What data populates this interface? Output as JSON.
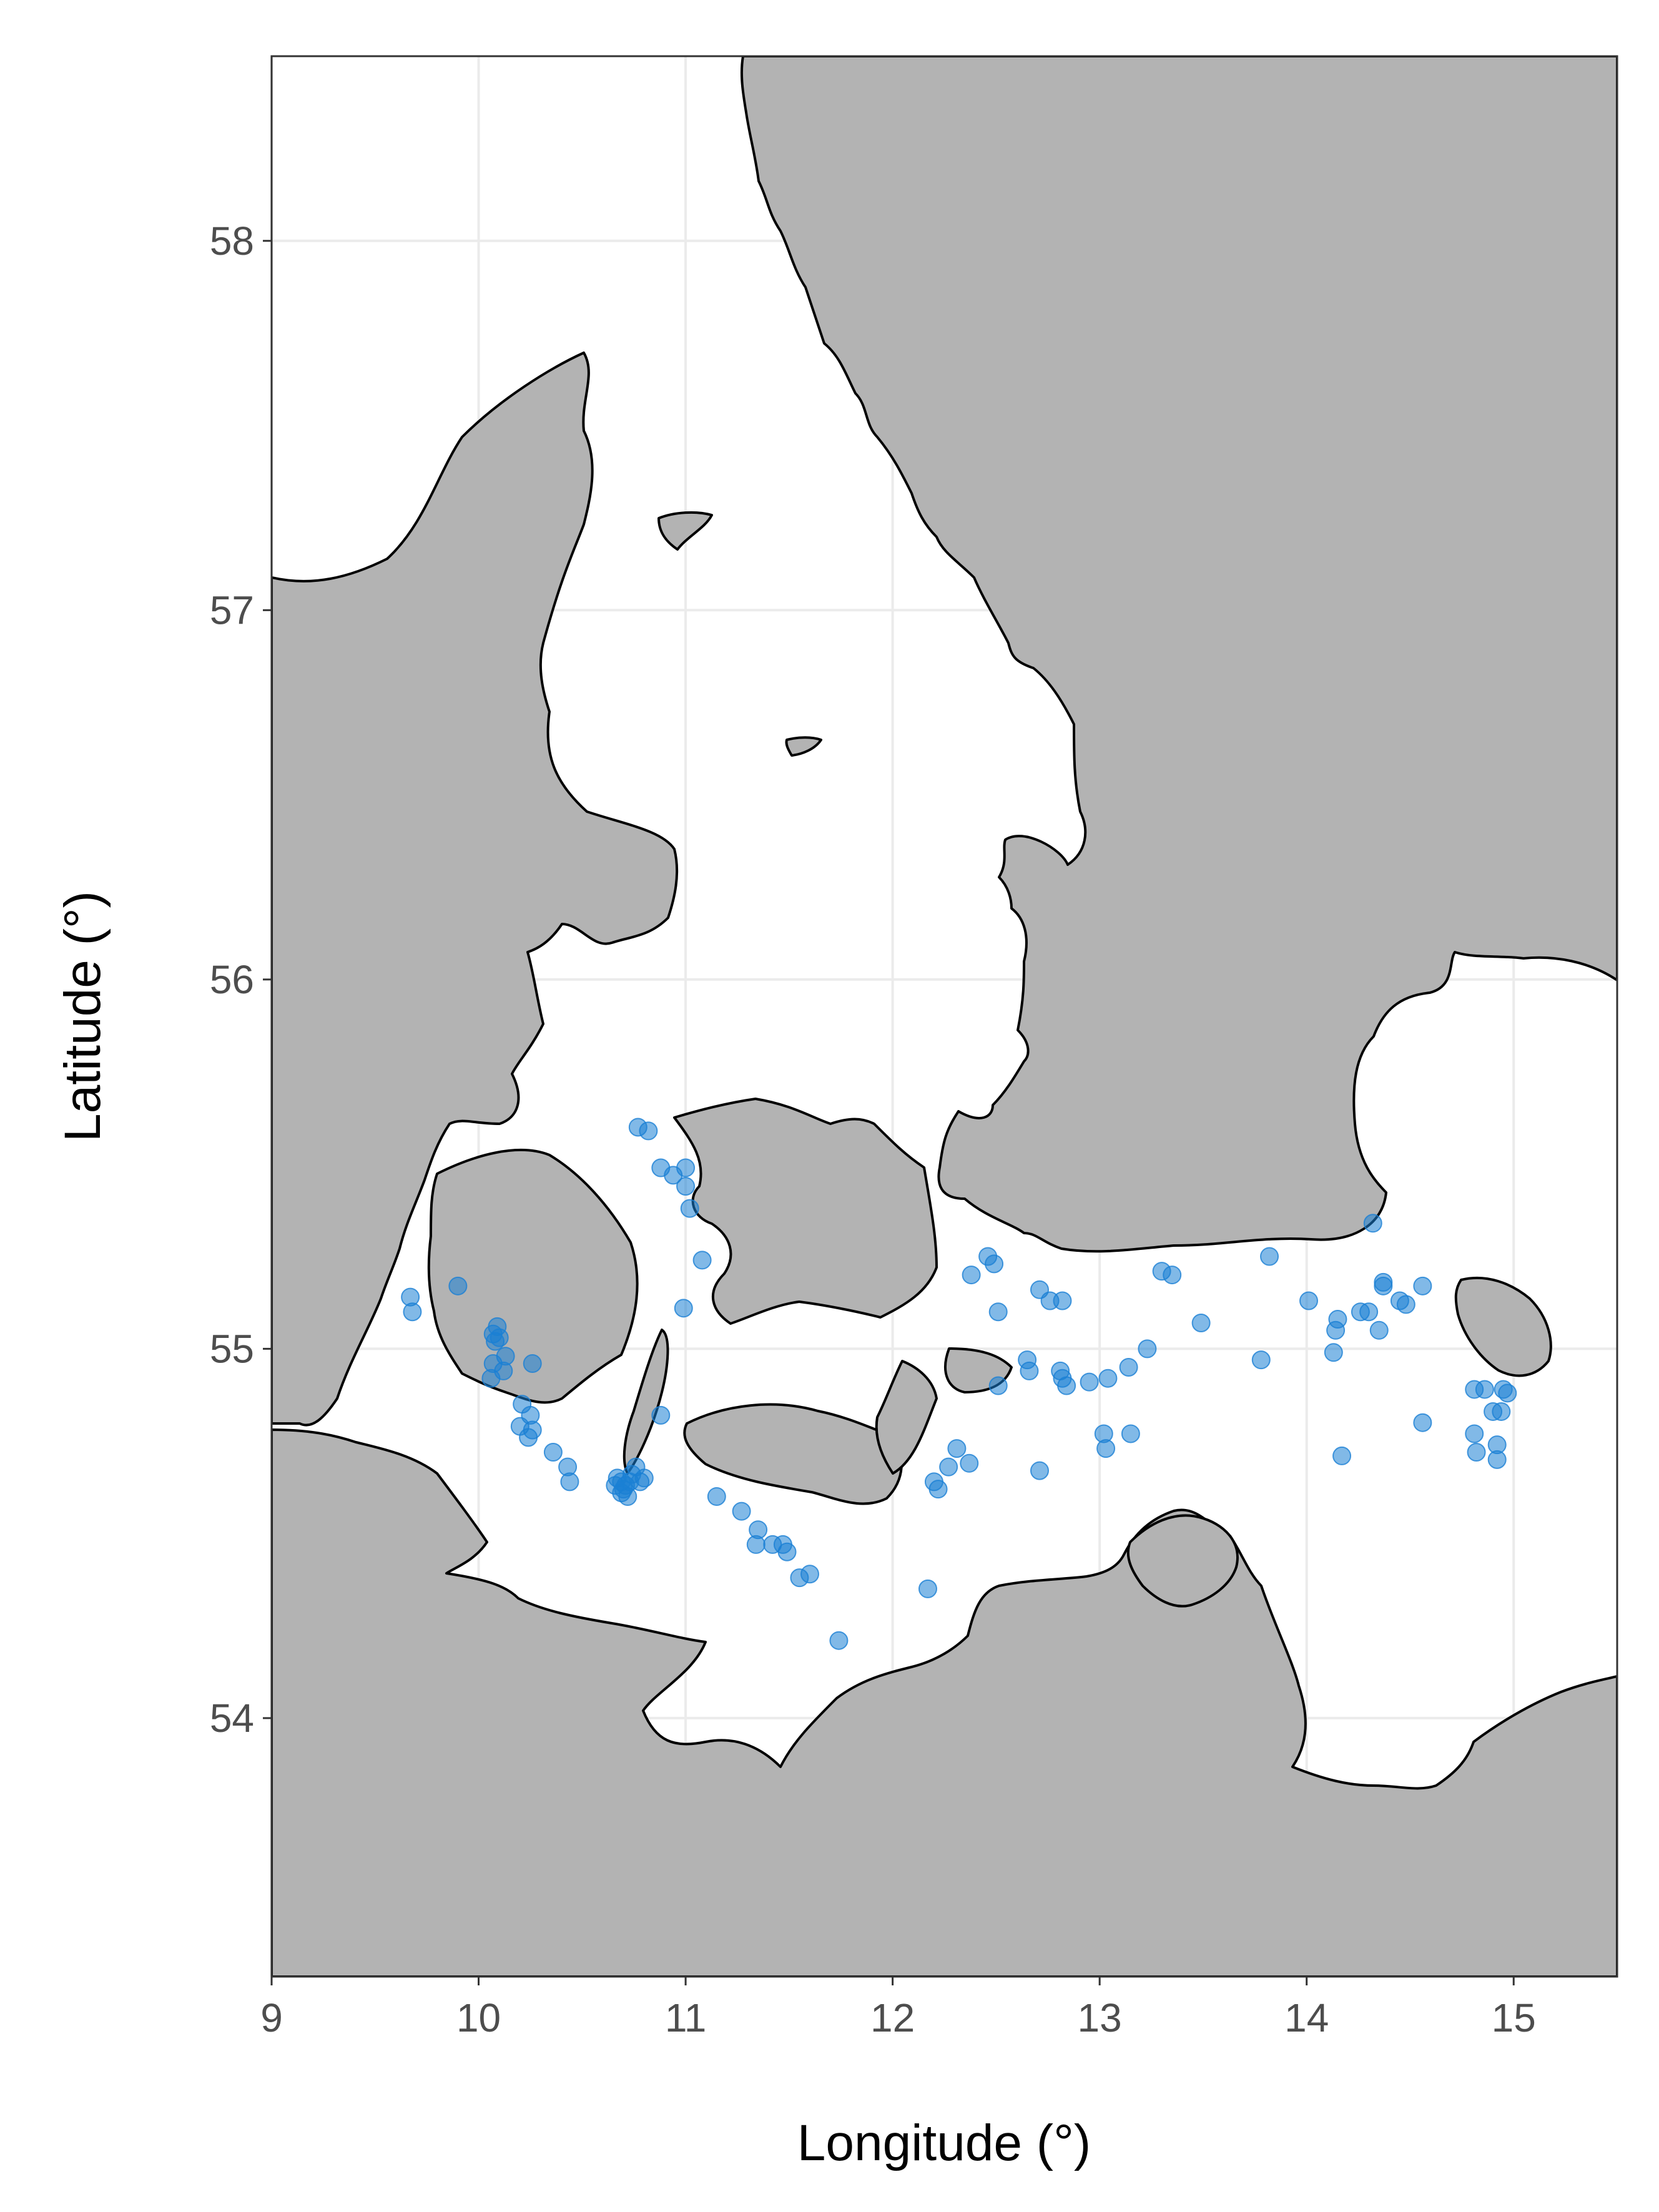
{
  "chart_data": {
    "type": "scatter",
    "xlabel": "Longitude (°)",
    "ylabel": "Latitude (°)",
    "xlim": [
      9,
      15.5
    ],
    "ylim": [
      53.3,
      58.5
    ],
    "x_ticks": [
      "9",
      "10",
      "11",
      "12",
      "13",
      "14",
      "15"
    ],
    "y_ticks": [
      "54",
      "55",
      "56",
      "57",
      "58"
    ],
    "grid": true,
    "land_color": "#b3b3b3",
    "sea_color": "#ffffff",
    "point_color": "#1a7fd4",
    "series": [
      {
        "points": [
          [
            10.82,
            55.59
          ],
          [
            10.77,
            55.6
          ],
          [
            10.88,
            55.49
          ],
          [
            10.94,
            55.47
          ],
          [
            11.0,
            55.49
          ],
          [
            11.0,
            55.44
          ],
          [
            11.02,
            55.38
          ],
          [
            11.08,
            55.24
          ],
          [
            10.99,
            55.11
          ],
          [
            9.67,
            55.14
          ],
          [
            9.68,
            55.1
          ],
          [
            9.9,
            55.17
          ],
          [
            10.07,
            55.04
          ],
          [
            10.09,
            55.06
          ],
          [
            10.08,
            55.02
          ],
          [
            10.1,
            55.03
          ],
          [
            10.13,
            54.98
          ],
          [
            10.12,
            54.94
          ],
          [
            10.07,
            54.96
          ],
          [
            10.06,
            54.92
          ],
          [
            10.21,
            54.85
          ],
          [
            10.25,
            54.82
          ],
          [
            10.2,
            54.79
          ],
          [
            10.26,
            54.78
          ],
          [
            10.24,
            54.76
          ],
          [
            10.26,
            54.96
          ],
          [
            10.36,
            54.72
          ],
          [
            10.43,
            54.68
          ],
          [
            10.44,
            54.64
          ],
          [
            10.88,
            54.82
          ],
          [
            10.67,
            54.65
          ],
          [
            10.69,
            54.64
          ],
          [
            10.71,
            54.63
          ],
          [
            10.69,
            54.61
          ],
          [
            10.72,
            54.6
          ],
          [
            10.74,
            54.66
          ],
          [
            10.76,
            54.68
          ],
          [
            10.78,
            54.64
          ],
          [
            10.8,
            54.65
          ],
          [
            10.66,
            54.63
          ],
          [
            10.7,
            54.62
          ],
          [
            10.73,
            54.64
          ],
          [
            11.15,
            54.6
          ],
          [
            11.27,
            54.56
          ],
          [
            11.35,
            54.51
          ],
          [
            11.34,
            54.47
          ],
          [
            11.42,
            54.47
          ],
          [
            11.47,
            54.47
          ],
          [
            11.49,
            54.45
          ],
          [
            11.55,
            54.38
          ],
          [
            11.6,
            54.39
          ],
          [
            11.74,
            54.21
          ],
          [
            12.17,
            54.35
          ],
          [
            12.2,
            54.64
          ],
          [
            12.22,
            54.62
          ],
          [
            12.27,
            54.68
          ],
          [
            12.31,
            54.73
          ],
          [
            12.37,
            54.69
          ],
          [
            12.38,
            55.2
          ],
          [
            12.46,
            55.25
          ],
          [
            12.49,
            55.23
          ],
          [
            12.51,
            55.1
          ],
          [
            12.51,
            54.9
          ],
          [
            12.65,
            54.97
          ],
          [
            12.66,
            54.94
          ],
          [
            12.71,
            55.16
          ],
          [
            12.76,
            55.13
          ],
          [
            12.82,
            55.13
          ],
          [
            12.81,
            54.94
          ],
          [
            12.82,
            54.92
          ],
          [
            12.84,
            54.9
          ],
          [
            12.71,
            54.67
          ],
          [
            12.95,
            54.91
          ],
          [
            13.02,
            54.77
          ],
          [
            13.03,
            54.73
          ],
          [
            13.04,
            54.92
          ],
          [
            13.14,
            54.95
          ],
          [
            13.15,
            54.77
          ],
          [
            13.23,
            55.0
          ],
          [
            13.3,
            55.21
          ],
          [
            13.35,
            55.2
          ],
          [
            13.49,
            55.07
          ],
          [
            13.78,
            54.97
          ],
          [
            13.82,
            55.25
          ],
          [
            14.01,
            55.13
          ],
          [
            14.13,
            54.99
          ],
          [
            14.14,
            55.05
          ],
          [
            14.15,
            55.08
          ],
          [
            14.17,
            54.71
          ],
          [
            14.26,
            55.1
          ],
          [
            14.3,
            55.1
          ],
          [
            14.32,
            55.34
          ],
          [
            14.35,
            55.05
          ],
          [
            14.37,
            55.17
          ],
          [
            14.37,
            55.18
          ],
          [
            14.45,
            55.13
          ],
          [
            14.48,
            55.12
          ],
          [
            14.56,
            55.17
          ],
          [
            14.56,
            54.8
          ],
          [
            14.81,
            54.89
          ],
          [
            14.81,
            54.77
          ],
          [
            14.82,
            54.72
          ],
          [
            14.86,
            54.89
          ],
          [
            14.9,
            54.83
          ],
          [
            14.92,
            54.74
          ],
          [
            14.92,
            54.7
          ],
          [
            14.94,
            54.83
          ],
          [
            14.95,
            54.89
          ],
          [
            14.97,
            54.88
          ]
        ]
      }
    ]
  }
}
